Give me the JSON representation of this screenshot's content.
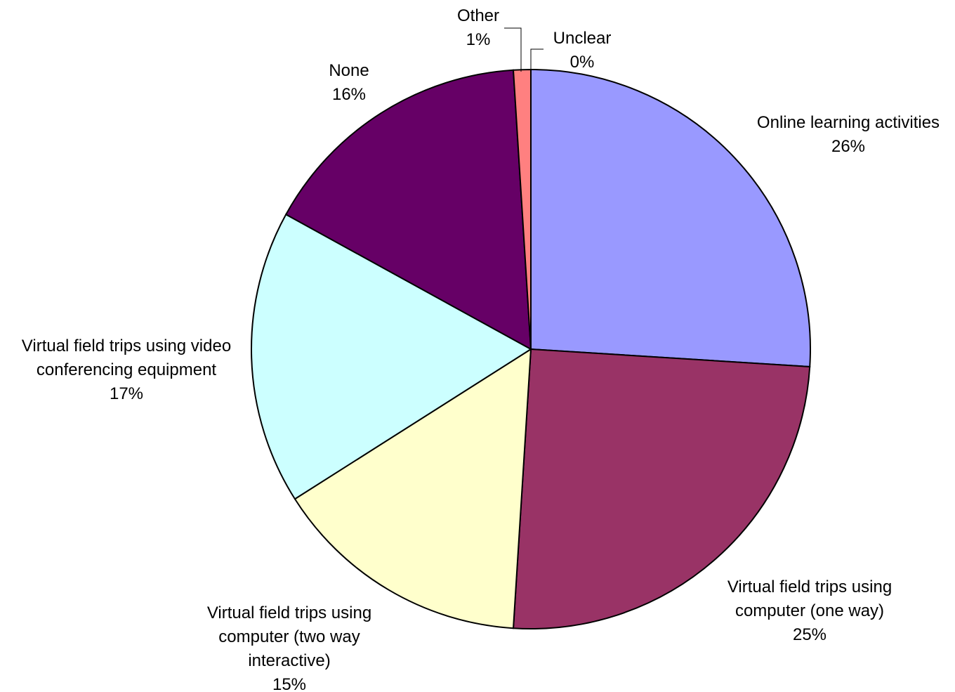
{
  "chart_data": {
    "type": "pie",
    "title": "",
    "start_angle_deg": 0,
    "direction": "clockwise",
    "slices": [
      {
        "label": "Online learning activities",
        "value": 26,
        "percent_text": "26%",
        "color": "#9999FF"
      },
      {
        "label": "Virtual field trips using computer (one way)",
        "value": 25,
        "percent_text": "25%",
        "color": "#993366"
      },
      {
        "label": "Virtual field trips using computer (two way interactive)",
        "value": 15,
        "percent_text": "15%",
        "color": "#FFFFCC"
      },
      {
        "label": "Virtual field trips using video conferencing equipment",
        "value": 17,
        "percent_text": "17%",
        "color": "#CCFFFF"
      },
      {
        "label": "None",
        "value": 16,
        "percent_text": "16%",
        "color": "#660066"
      },
      {
        "label": "Other",
        "value": 1,
        "percent_text": "1%",
        "color": "#FF8080"
      },
      {
        "label": "Unclear",
        "value": 0,
        "percent_text": "0%",
        "color": "#8080FF"
      }
    ]
  }
}
